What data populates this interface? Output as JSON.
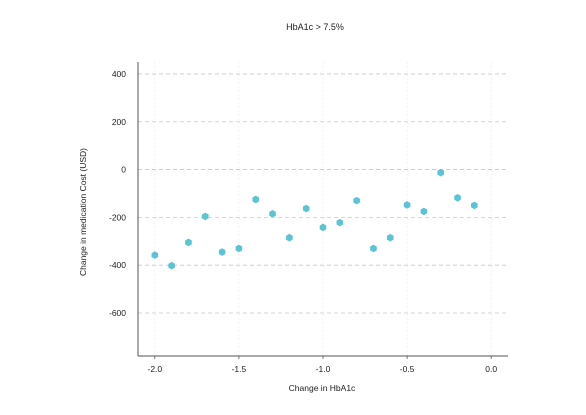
{
  "chart_data": {
    "type": "scatter",
    "title": "HbA1c > 7.5%",
    "xlabel": "Change in HbA1c",
    "ylabel": "Change in medication Cost (USD)",
    "xlim": [
      -2.1,
      0.1
    ],
    "ylim": [
      -780,
      450
    ],
    "x_ticks": [
      -2.0,
      -1.5,
      -1.0,
      -0.5,
      0.0
    ],
    "x_tick_labels": [
      "-2.0",
      "-1.5",
      "-1.0",
      "-0.5",
      "0.0"
    ],
    "y_ticks": [
      400,
      200,
      0,
      -200,
      -400,
      -600
    ],
    "y_tick_labels": [
      "400",
      "200",
      "0",
      "-200",
      "-400",
      "-600"
    ],
    "grid": true,
    "legend": "none",
    "colors": {
      "point": "#5bc4d4",
      "grid": "#c8c8c8",
      "axis": "#555555"
    },
    "points": [
      {
        "x": -2.0,
        "y": -358
      },
      {
        "x": -1.9,
        "y": -402
      },
      {
        "x": -1.8,
        "y": -305
      },
      {
        "x": -1.7,
        "y": -196
      },
      {
        "x": -1.6,
        "y": -345
      },
      {
        "x": -1.5,
        "y": -330
      },
      {
        "x": -1.4,
        "y": -125
      },
      {
        "x": -1.3,
        "y": -185
      },
      {
        "x": -1.2,
        "y": -285
      },
      {
        "x": -1.1,
        "y": -163
      },
      {
        "x": -1.0,
        "y": -242
      },
      {
        "x": -0.9,
        "y": -222
      },
      {
        "x": -0.8,
        "y": -130
      },
      {
        "x": -0.7,
        "y": -330
      },
      {
        "x": -0.6,
        "y": -285
      },
      {
        "x": -0.5,
        "y": -148
      },
      {
        "x": -0.4,
        "y": -175
      },
      {
        "x": -0.3,
        "y": -13
      },
      {
        "x": -0.2,
        "y": -118
      },
      {
        "x": -0.1,
        "y": -150
      }
    ]
  }
}
